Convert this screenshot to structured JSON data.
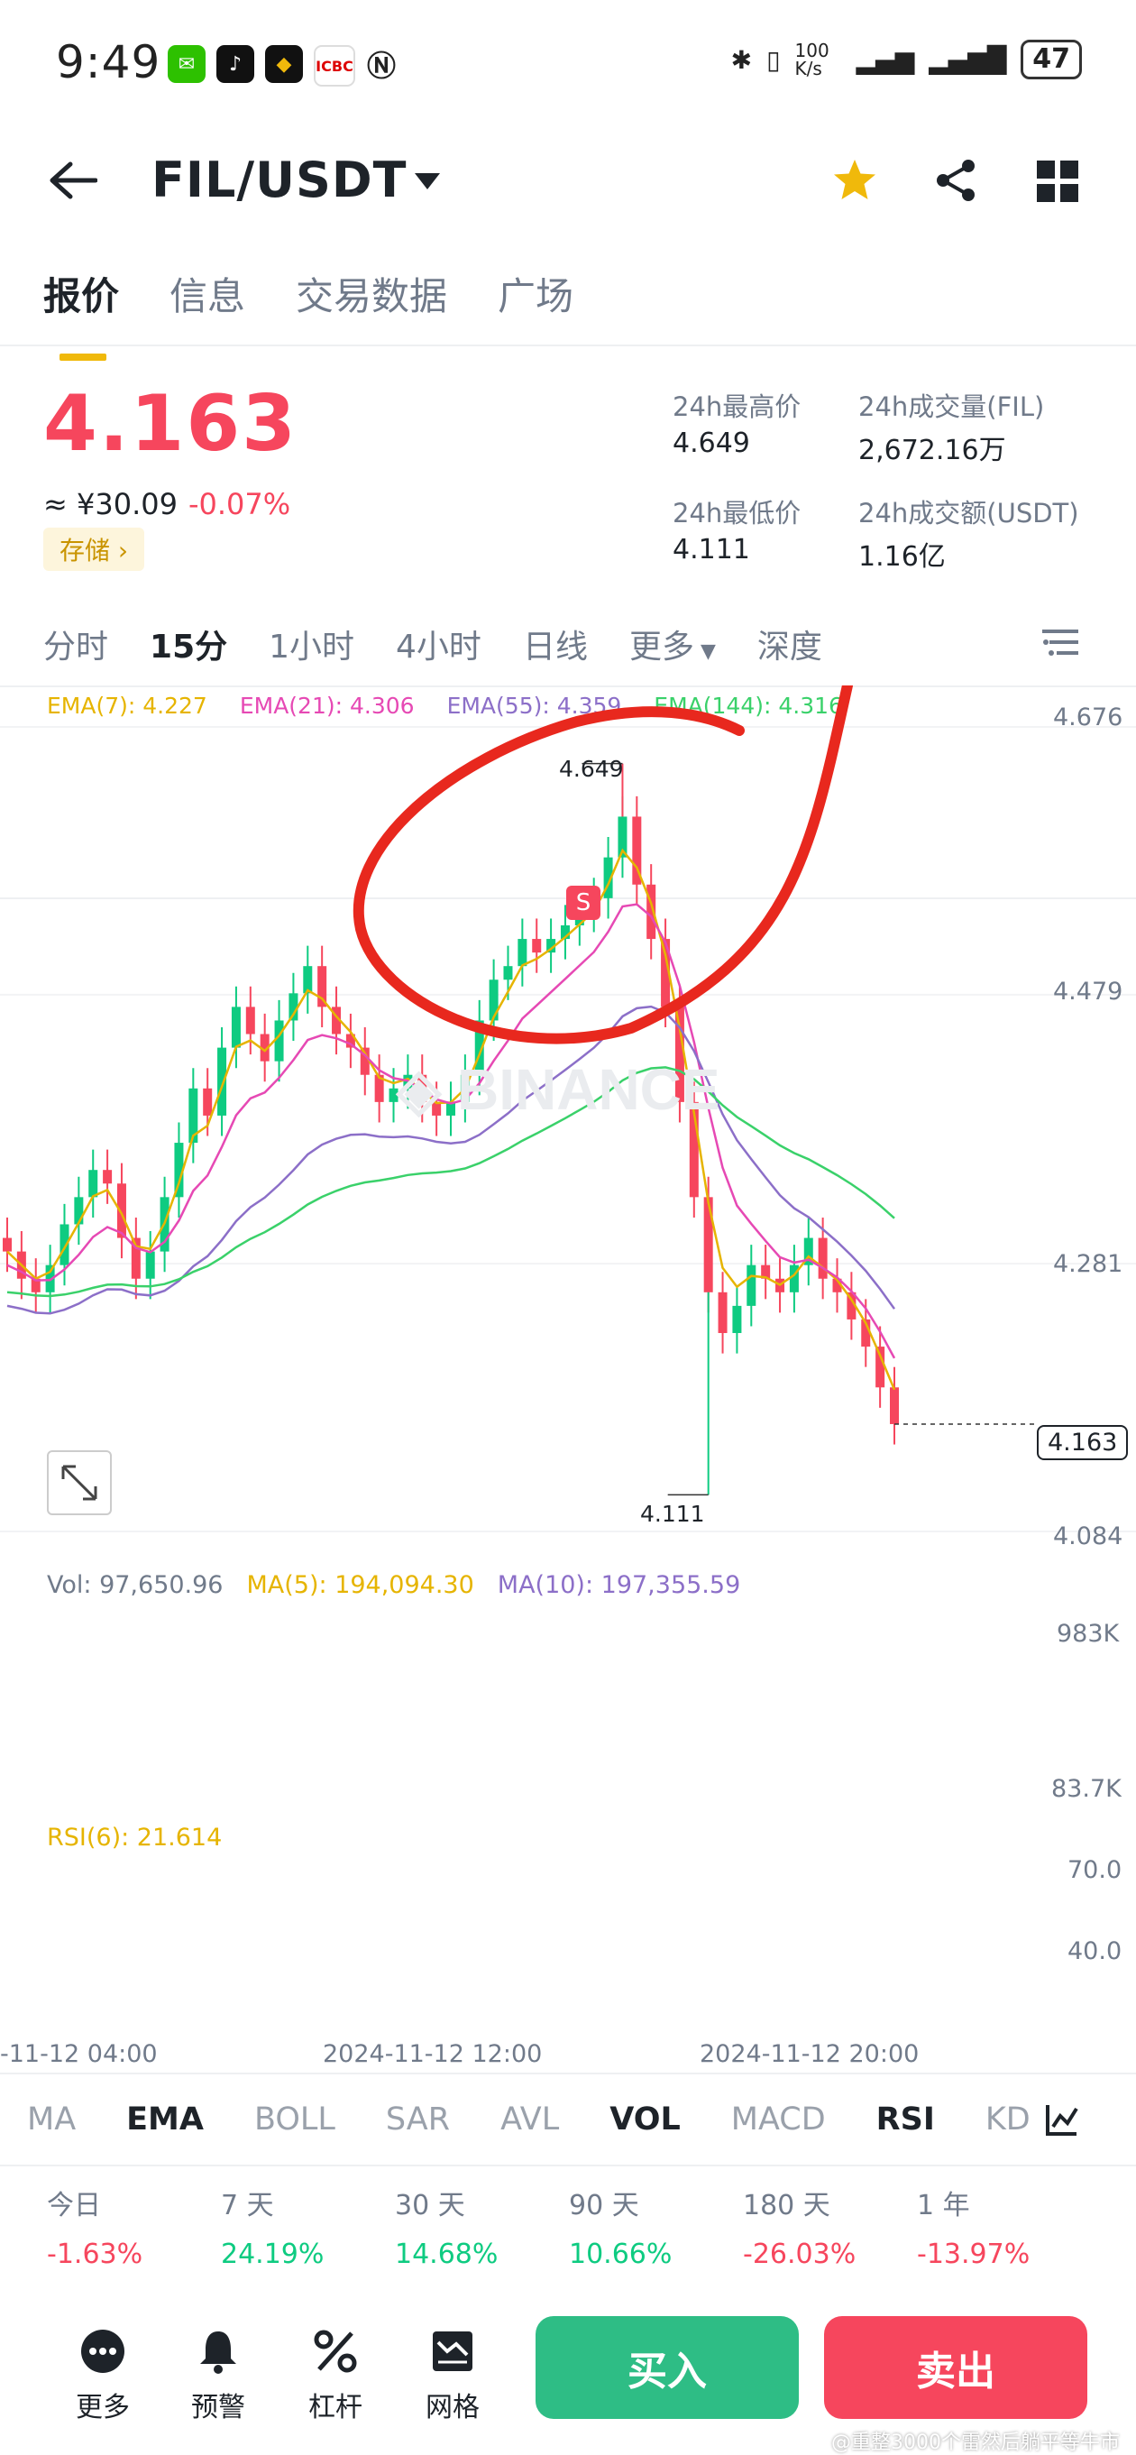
{
  "status_bar": {
    "time": "9:49",
    "net_speed": "100 K/s",
    "battery": "47"
  },
  "header": {
    "pair": "FIL/USDT"
  },
  "tabs": [
    "报价",
    "信息",
    "交易数据",
    "广场"
  ],
  "ticker": {
    "price": "4.163",
    "cny": "≈ ¥30.09",
    "change": "-0.07%",
    "badge": "存储 ›",
    "high_label": "24h最高价",
    "high": "4.649",
    "low_label": "24h最低价",
    "low": "4.111",
    "vol_fil_label": "24h成交量(FIL)",
    "vol_fil": "2,672.16万",
    "vol_usdt_label": "24h成交额(USDT)",
    "vol_usdt": "1.16亿"
  },
  "intervals": [
    "分时",
    "15分",
    "1小时",
    "4小时",
    "日线",
    "更多",
    "深度"
  ],
  "ema_legend": {
    "ema7": "EMA(7): 4.227",
    "ema21": "EMA(21): 4.306",
    "ema55": "EMA(55): 4.359",
    "ema144": "EMA(144): 4.316"
  },
  "price_axis": [
    "4.676",
    "4.479",
    "4.281",
    "4.084"
  ],
  "last_price_tag": "4.163",
  "high_marker": "4.649",
  "low_marker": "4.111",
  "sell_marker": "S",
  "vol_legend": {
    "vol": "Vol: 97,650.96",
    "ma5": "MA(5): 194,094.30",
    "ma10": "MA(10): 197,355.59"
  },
  "vol_axis": [
    "983K",
    "83.7K"
  ],
  "rsi_legend": "RSI(6): 21.614",
  "rsi_axis": [
    "70.0",
    "40.0"
  ],
  "time_axis": [
    "-11-12 04:00",
    "2024-11-12 12:00",
    "2024-11-12 20:00"
  ],
  "indicator_tabs": [
    "MA",
    "EMA",
    "BOLL",
    "SAR",
    "AVL",
    "VOL",
    "MACD",
    "RSI",
    "KD"
  ],
  "performance": [
    {
      "label": "今日",
      "value": "-1.63%"
    },
    {
      "label": "7 天",
      "value": "24.19%"
    },
    {
      "label": "30 天",
      "value": "14.68%"
    },
    {
      "label": "90 天",
      "value": "10.66%"
    },
    {
      "label": "180 天",
      "value": "-26.03%"
    },
    {
      "label": "1 年",
      "value": "-13.97%"
    }
  ],
  "bottom_bar": {
    "more": "更多",
    "alert": "预警",
    "leverage": "杠杆",
    "grid": "网格",
    "buy": "买入",
    "sell": "卖出"
  },
  "watermark": "@重整3000个雷然后躺平等牛市",
  "colors": {
    "up": "#0ecb81",
    "down": "#f6465d",
    "accent": "#f0b90b",
    "ema7": "#e6b400",
    "ema21": "#e649b4",
    "ema55": "#8c6fc8",
    "ema144": "#3ad16a",
    "annotation": "#e8281e"
  },
  "chart_data": {
    "type": "candlestick",
    "interval": "15m",
    "close_series": [
      4.29,
      4.27,
      4.26,
      4.28,
      4.31,
      4.33,
      4.35,
      4.34,
      4.3,
      4.27,
      4.29,
      4.33,
      4.37,
      4.41,
      4.39,
      4.44,
      4.47,
      4.45,
      4.43,
      4.46,
      4.48,
      4.5,
      4.47,
      4.45,
      4.44,
      4.42,
      4.4,
      4.41,
      4.42,
      4.4,
      4.39,
      4.4,
      4.42,
      4.46,
      4.49,
      4.5,
      4.52,
      4.51,
      4.52,
      4.53,
      4.54,
      4.55,
      4.58,
      4.61,
      4.56,
      4.52,
      4.47,
      4.4,
      4.33,
      4.26,
      4.23,
      4.25,
      4.28,
      4.27,
      4.26,
      4.28,
      4.3,
      4.27,
      4.26,
      4.24,
      4.22,
      4.19,
      4.163
    ],
    "high": 4.649,
    "low": 4.111,
    "last": 4.163,
    "price_axis": [
      4.676,
      4.479,
      4.281,
      4.084
    ],
    "volume_axis": [
      "983K",
      "83.7K"
    ],
    "rsi_axis": [
      70.0,
      40.0
    ],
    "rsi_last": 21.614
  }
}
